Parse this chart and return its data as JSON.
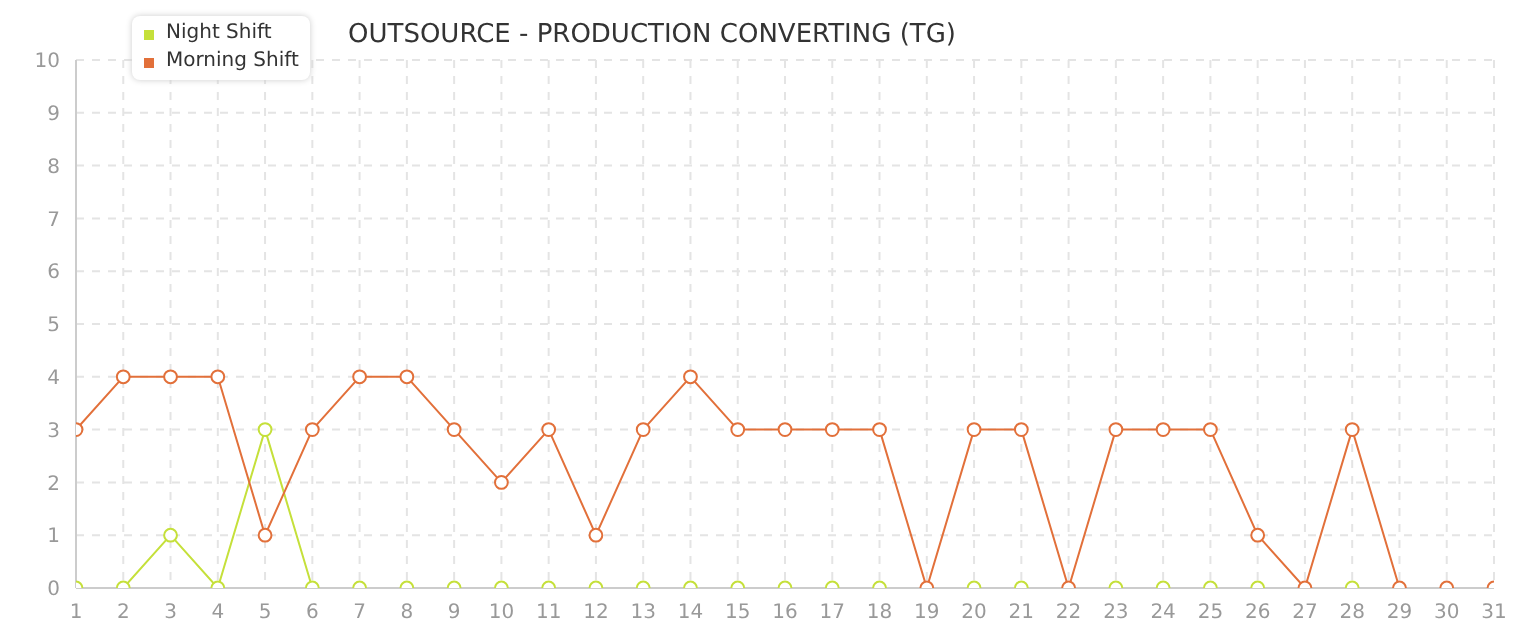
{
  "chart_data": {
    "type": "line",
    "title": "OUTSOURCE - PRODUCTION CONVERTING (TG)",
    "x": [
      1,
      2,
      3,
      4,
      5,
      6,
      7,
      8,
      9,
      10,
      11,
      12,
      13,
      14,
      15,
      16,
      17,
      18,
      19,
      20,
      21,
      22,
      23,
      24,
      25,
      26,
      27,
      28,
      29,
      30,
      31
    ],
    "series": [
      {
        "name": "Night Shift",
        "color": "#c5e03a",
        "values": [
          0,
          0,
          1,
          0,
          3,
          0,
          0,
          0,
          0,
          0,
          0,
          0,
          0,
          0,
          0,
          0,
          0,
          0,
          null,
          0,
          0,
          null,
          0,
          0,
          0,
          0,
          null,
          0,
          null,
          null,
          null
        ]
      },
      {
        "name": "Morning Shift",
        "color": "#e2703a",
        "values": [
          3,
          4,
          4,
          4,
          1,
          3,
          4,
          4,
          3,
          2,
          3,
          1,
          3,
          4,
          3,
          3,
          3,
          3,
          0,
          3,
          3,
          0,
          3,
          3,
          3,
          1,
          0,
          3,
          0,
          0,
          0
        ]
      }
    ],
    "xlim": [
      1,
      31
    ],
    "xticks": [
      1,
      2,
      3,
      4,
      5,
      6,
      7,
      8,
      9,
      10,
      11,
      12,
      13,
      14,
      15,
      16,
      17,
      18,
      19,
      20,
      21,
      22,
      23,
      24,
      25,
      26,
      27,
      28,
      29,
      30,
      31
    ],
    "ylim": [
      0,
      10
    ],
    "yticks": [
      0,
      1,
      2,
      3,
      4,
      5,
      6,
      7,
      8,
      9,
      10
    ],
    "grid": true,
    "legend": "top left",
    "marker": "circle",
    "line_style": "solid"
  }
}
